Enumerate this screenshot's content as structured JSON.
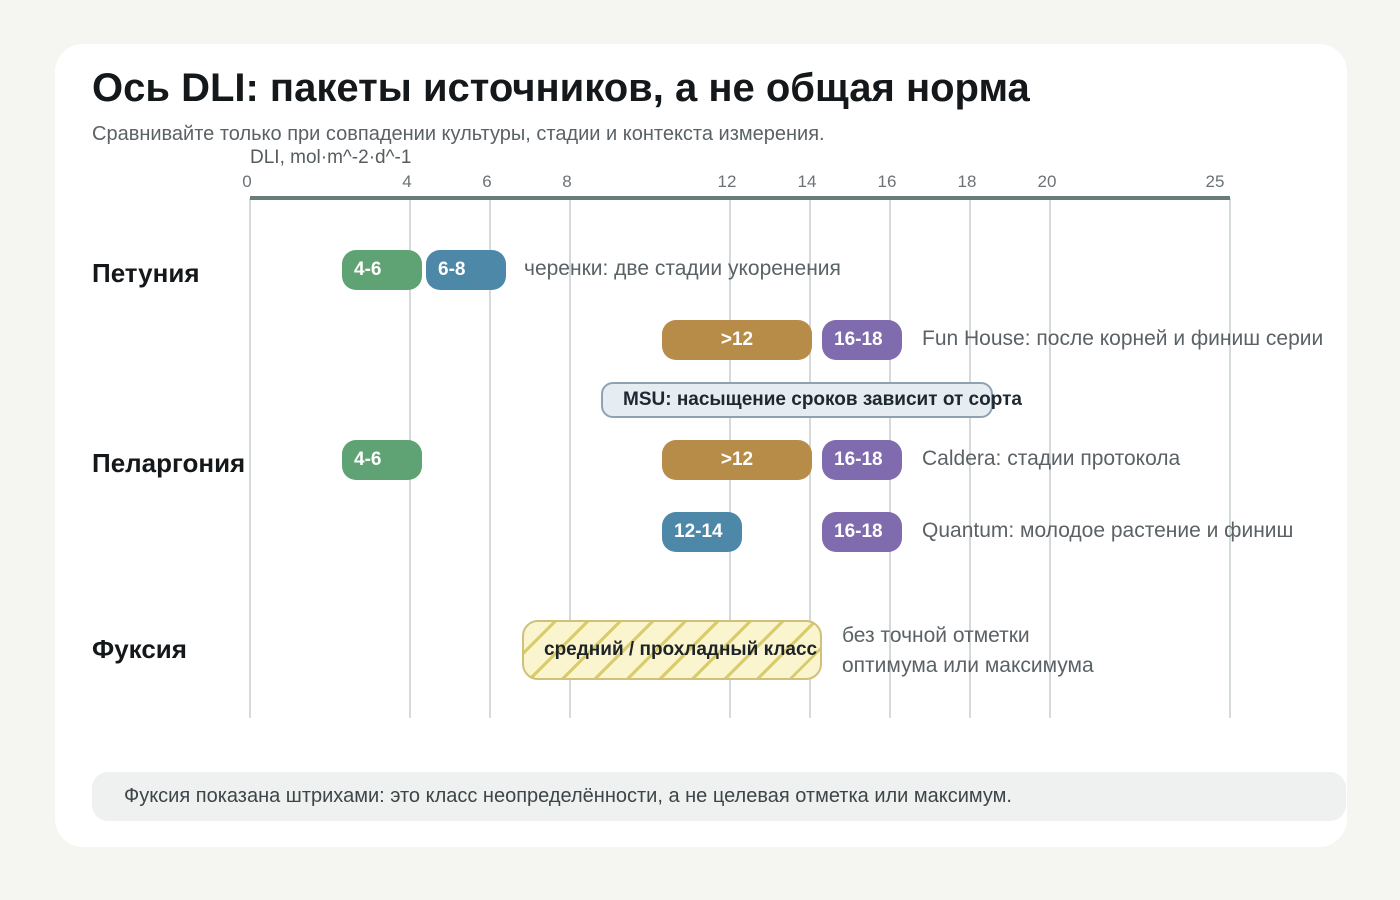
{
  "title": "Ось DLI: пакеты источников, а не общая норма",
  "subtitle": "Сравнивайте только при совпадении культуры, стадии и контекста измерения.",
  "chart_data": {
    "type": "bar",
    "xlabel": "DLI, mol·m^-2·d^-1",
    "xticks": [
      "0",
      "4",
      "6",
      "8",
      "12",
      "14",
      "16",
      "18",
      "20",
      "25"
    ],
    "xlim": [
      0,
      25
    ],
    "gridlines": [
      0,
      4,
      6,
      8,
      12,
      14,
      16,
      18,
      20,
      25
    ],
    "colors": {
      "green": "#5fa273",
      "blue": "#4d88a8",
      "gold": "#b78b48",
      "purple": "#7f6bad"
    },
    "crops": [
      {
        "name": "Петуния",
        "rows": [
          {
            "note": "черенки: две стадии укоренения",
            "bands": [
              {
                "label": "4-6",
                "from": 2.3,
                "to": 4.3,
                "color": "green"
              },
              {
                "label": "6-8",
                "from": 4.4,
                "to": 6.4,
                "color": "blue"
              }
            ]
          },
          {
            "note": "Fun House: после корней и финиш серии",
            "bands": [
              {
                "label": ">12",
                "from": 10.3,
                "to": 14.05,
                "color": "gold"
              },
              {
                "label": "16-18",
                "from": 14.3,
                "to": 16.3,
                "color": "purple"
              }
            ]
          }
        ]
      },
      {
        "name": "Пеларгония",
        "shared_note": {
          "label": "MSU: насыщение сроков зависит от сорта",
          "from": 8.8,
          "to": 18.6
        },
        "rows": [
          {
            "note": "Caldera: стадии протокола",
            "bands": [
              {
                "label": "4-6",
                "from": 2.3,
                "to": 4.3,
                "color": "green"
              },
              {
                "label": ">12",
                "from": 10.3,
                "to": 14.05,
                "color": "gold"
              },
              {
                "label": "16-18",
                "from": 14.3,
                "to": 16.3,
                "color": "purple"
              }
            ]
          },
          {
            "note": "Quantum: молодое растение и финиш",
            "bands": [
              {
                "label": "12-14",
                "from": 10.3,
                "to": 12.3,
                "color": "blue"
              },
              {
                "label": "16-18",
                "from": 14.3,
                "to": 16.3,
                "color": "purple"
              }
            ]
          }
        ]
      },
      {
        "name": "Фуксия",
        "uncertain_class": {
          "label": "средний / прохладный класс",
          "from": 6.8,
          "to": 14.3,
          "note_line1": "без точной отметки",
          "note_line2": "оптимума или максимума"
        }
      }
    ]
  },
  "footer": "Фуксия показана штрихами: это класс неопределённости, а не целевая отметка или максимум."
}
